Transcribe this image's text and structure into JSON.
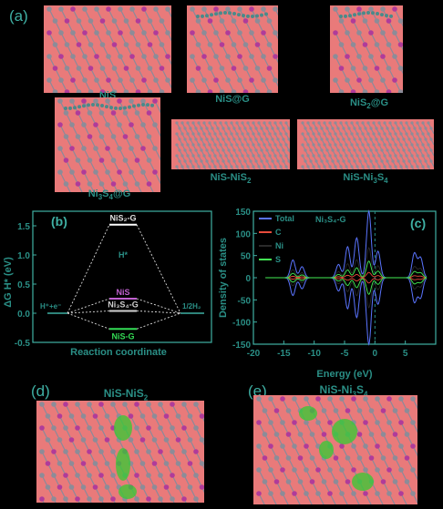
{
  "panel_a": {
    "letter": "(a)",
    "structures": [
      {
        "label": "NiS"
      },
      {
        "label": "NiS@G"
      },
      {
        "label_main": "NiS",
        "label_sub": "2",
        "label_tail": "@G"
      },
      {
        "label_main": "Ni",
        "label_sub": "3",
        "label_mid": "S",
        "label_sub2": "4",
        "label_tail": "@G"
      },
      {
        "label_main": "NiS-NiS",
        "label_sub": "2"
      },
      {
        "label_main": "NiS-Ni",
        "label_sub": "3",
        "label_mid": "S",
        "label_sub2": "4"
      }
    ]
  },
  "panel_b": {
    "letter": "(b)",
    "ylabel": "ΔG H* (eV)",
    "xlabel": "Reaction coordinate",
    "left_label": "H⁺+e⁻",
    "right_label": "1/2H₂",
    "h_label": "H*"
  },
  "panel_d": {
    "letter": "(d)",
    "title_main": "NiS-NiS",
    "title_sub": "2"
  },
  "panel_e": {
    "letter": "(e)",
    "title_main": "NiS-Ni",
    "title_sub": "3",
    "title_mid": "S",
    "title_sub2": "4"
  },
  "colors": {
    "accent": "#2a8f86",
    "slab": "#e97a7a",
    "plot_line": "#3fb0a4"
  },
  "chart_data": [
    {
      "type": "line",
      "title": "",
      "xlabel": "Reaction coordinate",
      "ylabel": "ΔG H* (eV)",
      "ylim": [
        -0.5,
        1.75
      ],
      "yticks": [
        "-0.5",
        "0.0",
        "0.5",
        "1.0",
        "1.5"
      ],
      "series": [
        {
          "name": "NiS₂-G",
          "value": 1.52,
          "color": "#ffffff"
        },
        {
          "name": "NiS",
          "value": 0.25,
          "color": "#c060d0"
        },
        {
          "name": "Ni₃S₄-G",
          "value": 0.04,
          "color": "#d0d0d0"
        },
        {
          "name": "NiS-G",
          "value": -0.27,
          "color": "#33dd55"
        }
      ]
    },
    {
      "type": "line",
      "title": "Ni₃S₄-G",
      "xlabel": "Energy (eV)",
      "ylabel": "Density of states",
      "xlim": [
        -20,
        10
      ],
      "ylim": [
        -150,
        150
      ],
      "xticks": [
        "-20",
        "-15",
        "-10",
        "-5",
        "0",
        "5"
      ],
      "yticks": [
        "-150",
        "-100",
        "-50",
        "0",
        "50",
        "100",
        "150"
      ],
      "series": [
        {
          "name": "Total",
          "color": "#5a74ff"
        },
        {
          "name": "C",
          "color": "#e84c3c"
        },
        {
          "name": "Ni",
          "color": "#2a2a2a"
        },
        {
          "name": "S",
          "color": "#44ee55"
        }
      ],
      "panel_letter": "(c)"
    }
  ]
}
